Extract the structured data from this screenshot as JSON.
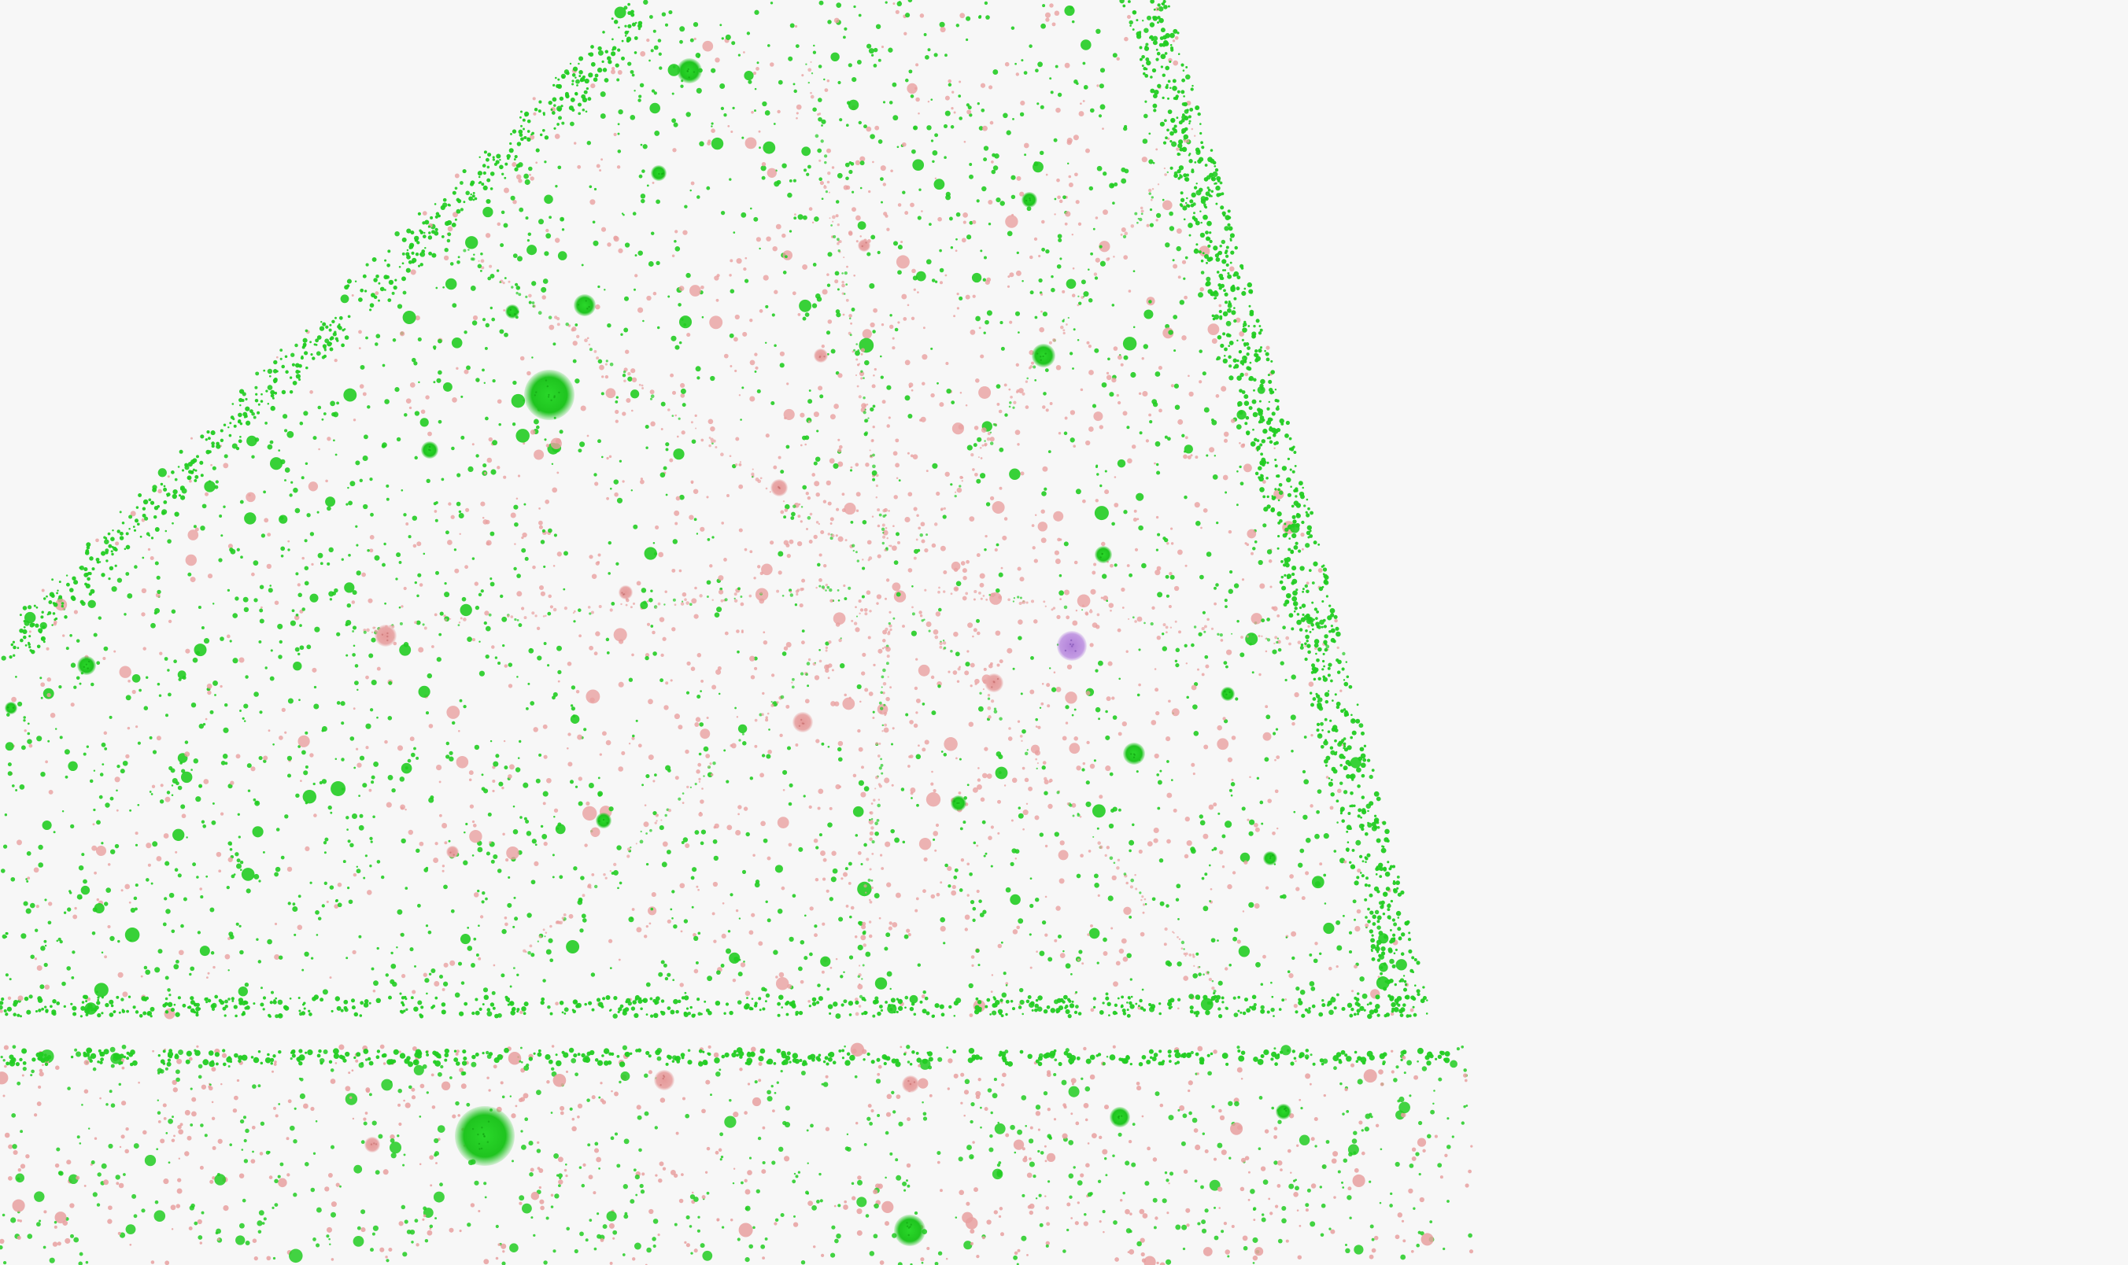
{
  "scene": {
    "background_color": "#f7f7f7",
    "primary_color": "#22cc22",
    "secondary_color": "#e8a0a0",
    "highlight_color": "#b78fd6"
  }
}
